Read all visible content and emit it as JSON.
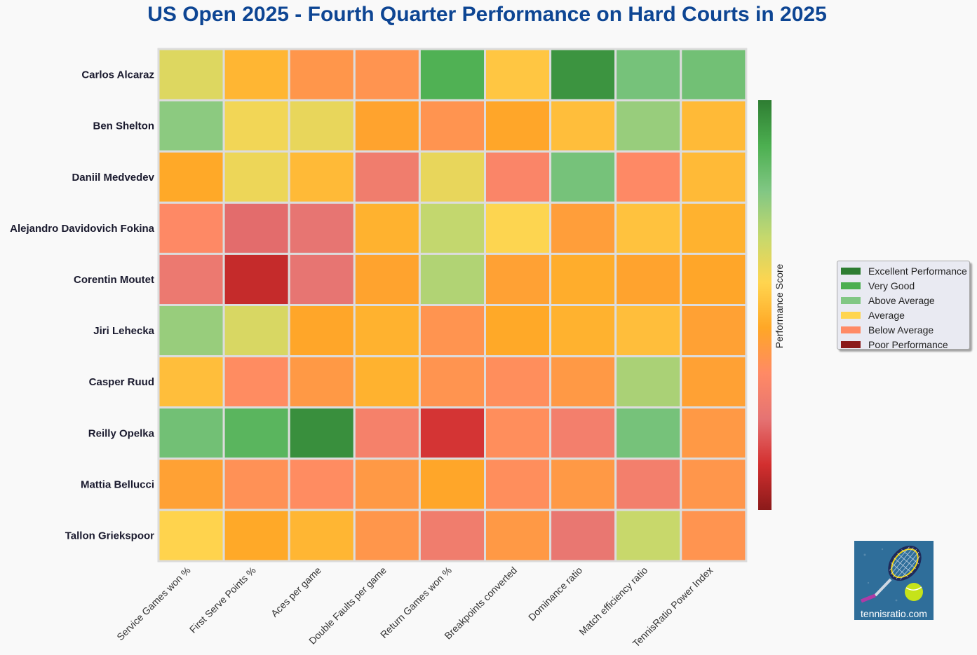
{
  "chart_data": {
    "type": "heatmap",
    "title": "US Open 2025 - Fourth Quarter Performance on Hard Courts in 2025",
    "rows": [
      "Carlos Alcaraz",
      "Ben Shelton",
      "Daniil Medvedev",
      "Alejandro Davidovich Fokina",
      "Corentin Moutet",
      "Jiri Lehecka",
      "Casper Ruud",
      "Reilly Opelka",
      "Mattia Bellucci",
      "Tallon Griekspoor"
    ],
    "columns": [
      "Service Games won %",
      "First Serve Points %",
      "Aces per game",
      "Double Faults per game",
      "Return Games won %",
      "Breakpoints converted",
      "Dominance ratio",
      "Match efficiency ratio",
      "TennisRatio Power Index"
    ],
    "values": [
      [
        0.62,
        0.48,
        0.38,
        0.37,
        0.88,
        0.52,
        0.95,
        0.8,
        0.81
      ],
      [
        0.76,
        0.58,
        0.6,
        0.43,
        0.37,
        0.44,
        0.5,
        0.74,
        0.49
      ],
      [
        0.45,
        0.59,
        0.49,
        0.27,
        0.6,
        0.31,
        0.8,
        0.33,
        0.49
      ],
      [
        0.33,
        0.21,
        0.23,
        0.47,
        0.67,
        0.56,
        0.41,
        0.51,
        0.47
      ],
      [
        0.25,
        0.09,
        0.23,
        0.43,
        0.7,
        0.42,
        0.46,
        0.43,
        0.44
      ],
      [
        0.74,
        0.63,
        0.44,
        0.47,
        0.37,
        0.45,
        0.47,
        0.5,
        0.42
      ],
      [
        0.5,
        0.34,
        0.39,
        0.47,
        0.37,
        0.35,
        0.39,
        0.71,
        0.42
      ],
      [
        0.81,
        0.86,
        0.96,
        0.29,
        0.12,
        0.35,
        0.28,
        0.8,
        0.39
      ],
      [
        0.42,
        0.36,
        0.34,
        0.39,
        0.44,
        0.35,
        0.39,
        0.28,
        0.38
      ],
      [
        0.55,
        0.45,
        0.48,
        0.38,
        0.27,
        0.39,
        0.24,
        0.66,
        0.37
      ]
    ],
    "colorbar_label": "Performance Score",
    "colorscale": [
      "#8b1a1a",
      "#d32f2f",
      "#e57373",
      "#ff8a65",
      "#ffa726",
      "#ffd54f",
      "#c5d86d",
      "#81c784",
      "#4caf50",
      "#2e7d32"
    ],
    "legend": [
      {
        "label": "Excellent Performance",
        "color": "#2e7d32"
      },
      {
        "label": "Very Good",
        "color": "#4caf50"
      },
      {
        "label": "Above Average",
        "color": "#81c784"
      },
      {
        "label": "Average",
        "color": "#ffd54f"
      },
      {
        "label": "Below Average",
        "color": "#ff8a65"
      },
      {
        "label": "Poor Performance",
        "color": "#8b1a1a"
      }
    ],
    "legend_position": "right"
  },
  "logo": {
    "text": "tennisratio.com"
  }
}
